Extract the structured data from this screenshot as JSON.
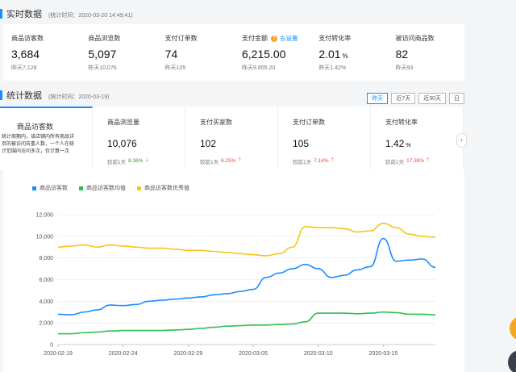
{
  "realtime": {
    "title": "实时数据",
    "timestamp": "(统计时间：2020-03-20 14:49:41)",
    "cells": [
      {
        "label": "商品访客数",
        "value": "3,684",
        "yesterday": "昨天7,128"
      },
      {
        "label": "商品浏览数",
        "value": "5,097",
        "yesterday": "昨天10,076"
      },
      {
        "label": "支付订单数",
        "value": "74",
        "yesterday": "昨天105"
      },
      {
        "label": "支付金额",
        "value": "6,215.00",
        "yesterday": "昨天9,855.20",
        "help_icon": "?",
        "link": "去设置"
      },
      {
        "label": "支付转化率",
        "value": "2.01",
        "unit": "%",
        "yesterday": "昨天1.42%"
      },
      {
        "label": "被访问商品数",
        "value": "82",
        "yesterday": "昨天93"
      }
    ]
  },
  "stats": {
    "title": "统计数据",
    "timestamp": "(统计时间：2020-03-19)",
    "ranges": [
      "昨天",
      "近7天",
      "近30天",
      "日"
    ],
    "active_range": 0,
    "tooltip": "统计周期内，该店铺内所有商品详页的被访问去重人数，一个人在统计范围内访问多次，仅计算一次",
    "metrics": [
      {
        "label": "商品访客数",
        "active": true
      },
      {
        "label": "商品浏览量",
        "value": "10,076",
        "comp_label": "较前1天",
        "change": "8.36%",
        "dir": "down"
      },
      {
        "label": "支付买家数",
        "value": "102",
        "comp_label": "较前1天",
        "change": "6.25%",
        "dir": "up"
      },
      {
        "label": "支付订单数",
        "value": "105",
        "comp_label": "较前1天",
        "change": "7.14%",
        "dir": "up"
      },
      {
        "label": "支付转化率",
        "value": "1.42",
        "unit": "%",
        "comp_label": "较前1天",
        "change": "17.38%",
        "dir": "up"
      }
    ],
    "next_icon": "›"
  },
  "colors": {
    "blue": "#1a8cff",
    "green": "#2fbf4f",
    "yellow": "#f5c518"
  },
  "chart_data": {
    "type": "line",
    "x": [
      "2020-02-19",
      "2020-02-20",
      "2020-02-21",
      "2020-02-22",
      "2020-02-23",
      "2020-02-24",
      "2020-02-25",
      "2020-02-26",
      "2020-02-27",
      "2020-02-28",
      "2020-02-29",
      "2020-03-01",
      "2020-03-02",
      "2020-03-03",
      "2020-03-04",
      "2020-03-05",
      "2020-03-06",
      "2020-03-07",
      "2020-03-08",
      "2020-03-09",
      "2020-03-10",
      "2020-03-11",
      "2020-03-12",
      "2020-03-13",
      "2020-03-14",
      "2020-03-15",
      "2020-03-16",
      "2020-03-17",
      "2020-03-18",
      "2020-03-19"
    ],
    "xticks": [
      "2020-02-19",
      "2020-02-24",
      "2020-02-29",
      "2020-03-05",
      "2020-03-10",
      "2020-03-15"
    ],
    "yticks": [
      "0",
      "2,000",
      "4,000",
      "6,000",
      "8,000",
      "10,000",
      "12,000"
    ],
    "ylim": [
      0,
      12000
    ],
    "series": [
      {
        "name": "商品访客数",
        "color": "#1a8cff",
        "values": [
          2800,
          2750,
          3000,
          3200,
          3650,
          3600,
          3700,
          4000,
          4100,
          4200,
          4300,
          4400,
          4600,
          4700,
          4900,
          5100,
          6200,
          6600,
          7000,
          7400,
          7000,
          6200,
          6400,
          6900,
          7200,
          9800,
          7700,
          7800,
          7900,
          7128
        ]
      },
      {
        "name": "商品访客数均值",
        "color": "#2fbf4f",
        "values": [
          1000,
          1000,
          1100,
          1150,
          1250,
          1300,
          1300,
          1300,
          1300,
          1350,
          1400,
          1500,
          1600,
          1700,
          1750,
          1800,
          1800,
          1850,
          1900,
          2100,
          2900,
          2900,
          2900,
          2850,
          2900,
          3000,
          2950,
          2800,
          2800,
          2750
        ]
      },
      {
        "name": "商品访客数优秀值",
        "color": "#f5c518",
        "values": [
          9000,
          9100,
          9200,
          9000,
          9200,
          9100,
          9000,
          8900,
          8900,
          8800,
          8700,
          8700,
          8600,
          8500,
          8400,
          8300,
          8200,
          8400,
          9000,
          10900,
          10800,
          10800,
          10700,
          10400,
          10500,
          11200,
          10800,
          10200,
          10000,
          9900
        ]
      }
    ]
  }
}
